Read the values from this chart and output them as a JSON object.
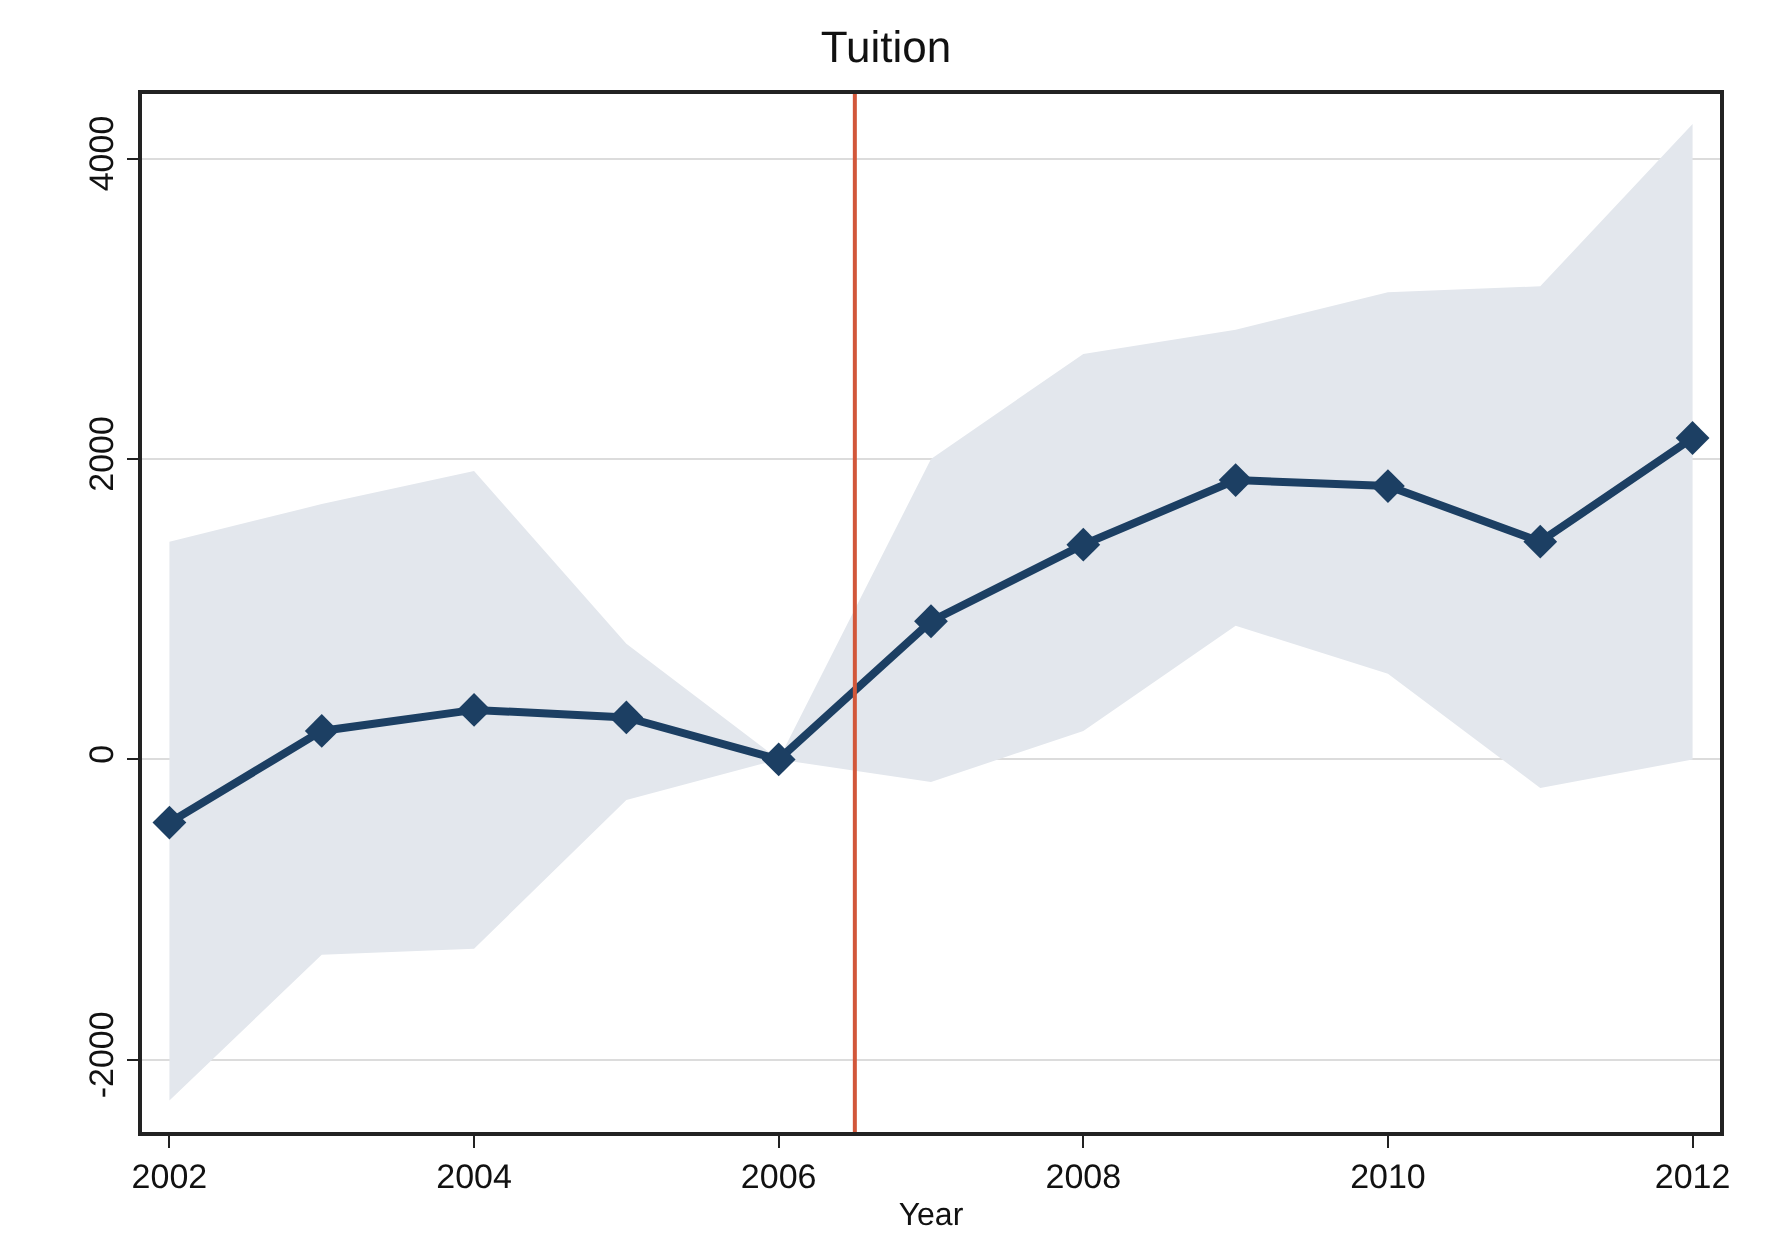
{
  "chart_data": {
    "type": "line",
    "title": "Tuition",
    "xlabel": "Year",
    "x": [
      2002,
      2003,
      2004,
      2005,
      2006,
      2007,
      2008,
      2009,
      2010,
      2011,
      2012
    ],
    "series": [
      {
        "color": "#1c3f63",
        "values": [
          -420,
          190,
          330,
          280,
          0,
          920,
          1430,
          1860,
          1820,
          1450,
          2140
        ],
        "lower": [
          -2270,
          -1300,
          -1260,
          -270,
          0,
          -150,
          190,
          890,
          570,
          -190,
          0
        ],
        "upper": [
          1450,
          1700,
          1920,
          770,
          0,
          2000,
          2700,
          2860,
          3110,
          3150,
          4230
        ]
      }
    ],
    "xlim": [
      2001.82,
      2012.18
    ],
    "ylim": [
      -2480,
      4430
    ],
    "xticks": [
      2002,
      2004,
      2006,
      2008,
      2010,
      2012
    ],
    "yticks": [
      -2000,
      0,
      2000,
      4000
    ],
    "ref_lines": [
      {
        "axis": "x",
        "value": 2006.5,
        "color": "#d2573a"
      }
    ],
    "grid": "y",
    "marker": "diamond",
    "line_style": "solid"
  }
}
